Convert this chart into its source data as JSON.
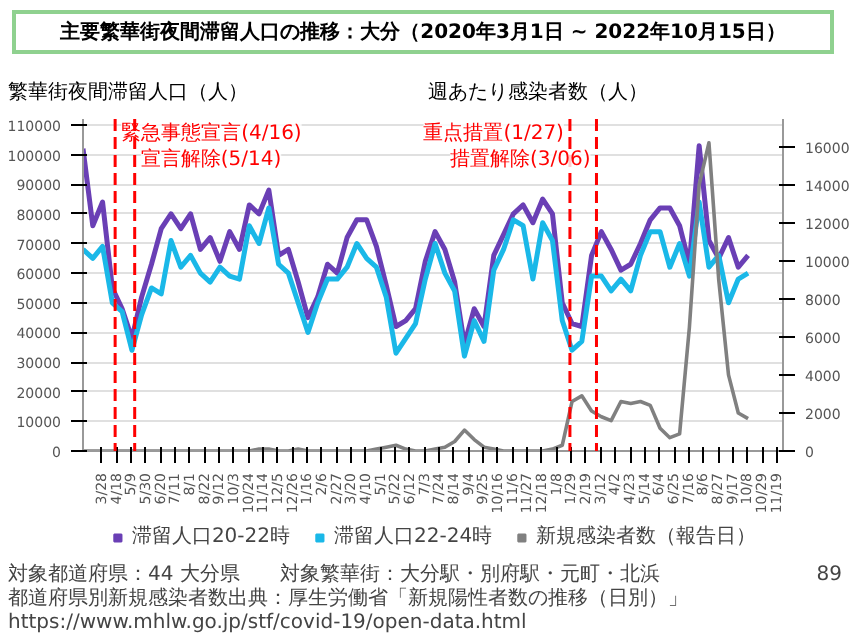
{
  "chart_data": {
    "type": "line",
    "title": "主要繁華街夜間滞留人口の推移：大分（2020年3月1日 ~ 2022年10月15日）",
    "ylabel": "繁華街夜間滞留人口（人）",
    "y2label": "週あたり感染者数（人）",
    "x": [
      "2020-03-01",
      "2020-03-15",
      "2020-03-29",
      "2020-04-12",
      "2020-04-26",
      "2020-05-10",
      "2020-05-24",
      "2020-06-07",
      "2020-06-21",
      "2020-07-05",
      "2020-07-19",
      "2020-08-02",
      "2020-08-16",
      "2020-08-30",
      "2020-09-13",
      "2020-09-27",
      "2020-10-11",
      "2020-10-25",
      "2020-11-08",
      "2020-11-22",
      "2020-12-06",
      "2020-12-20",
      "2021-01-03",
      "2021-01-17",
      "2021-01-31",
      "2021-02-14",
      "2021-02-28",
      "2021-03-14",
      "2021-03-28",
      "2021-04-11",
      "2021-04-25",
      "2021-05-09",
      "2021-05-23",
      "2021-06-06",
      "2021-06-20",
      "2021-07-04",
      "2021-07-18",
      "2021-08-01",
      "2021-08-15",
      "2021-08-29",
      "2021-09-12",
      "2021-09-26",
      "2021-10-10",
      "2021-10-24",
      "2021-11-07",
      "2021-11-21",
      "2021-12-05",
      "2021-12-19",
      "2022-01-02",
      "2022-01-16",
      "2022-01-30",
      "2022-02-13",
      "2022-02-27",
      "2022-03-13",
      "2022-03-27",
      "2022-04-10",
      "2022-04-24",
      "2022-05-08",
      "2022-05-22",
      "2022-06-05",
      "2022-06-19",
      "2022-07-03",
      "2022-07-17",
      "2022-07-31",
      "2022-08-14",
      "2022-08-28",
      "2022-09-11",
      "2022-09-25",
      "2022-10-09"
    ],
    "series": [
      {
        "name": "滞留人口20-22時",
        "color": "#6a3fb5",
        "values": [
          102000,
          76000,
          84000,
          55000,
          48000,
          38000,
          52000,
          63000,
          75000,
          80000,
          75000,
          80000,
          68000,
          72000,
          64000,
          74000,
          68000,
          83000,
          80000,
          88000,
          66000,
          68000,
          57000,
          45000,
          52000,
          63000,
          60000,
          72000,
          78000,
          78000,
          69000,
          56000,
          42000,
          44000,
          48000,
          64000,
          74000,
          68000,
          57000,
          36000,
          48000,
          42000,
          66000,
          73000,
          80000,
          83000,
          77000,
          85000,
          80000,
          50000,
          43000,
          42000,
          66000,
          74000,
          68000,
          61000,
          63000,
          70000,
          78000,
          82000,
          82000,
          76000,
          63000,
          103000,
          71000,
          65000,
          72000,
          62000,
          66000
        ]
      },
      {
        "name": "滞留人口22-24時",
        "color": "#1ab8e8",
        "values": [
          68000,
          65000,
          69000,
          50000,
          47000,
          34000,
          46000,
          55000,
          53000,
          71000,
          62000,
          66000,
          60000,
          57000,
          62000,
          59000,
          58000,
          76000,
          70000,
          82000,
          63000,
          60000,
          50000,
          40000,
          50000,
          58000,
          58000,
          62000,
          70000,
          65000,
          62000,
          52000,
          33000,
          38000,
          43000,
          58000,
          70000,
          60000,
          54000,
          32000,
          44000,
          37000,
          61000,
          68000,
          78000,
          76000,
          58000,
          77000,
          71000,
          44000,
          34000,
          37000,
          59000,
          59000,
          54000,
          58000,
          54000,
          66000,
          74000,
          74000,
          62000,
          70000,
          59000,
          84000,
          62000,
          66000,
          50000,
          58000,
          60000
        ]
      },
      {
        "name": "新規感染者数（報告日）",
        "color": "#808080",
        "axis": "y2",
        "values": [
          0,
          0,
          0,
          0,
          0,
          0,
          0,
          0,
          0,
          0,
          0,
          0,
          0,
          0,
          0,
          0,
          0,
          0,
          100,
          100,
          0,
          0,
          100,
          0,
          0,
          0,
          0,
          0,
          0,
          0,
          100,
          200,
          300,
          100,
          0,
          0,
          100,
          200,
          500,
          1100,
          600,
          200,
          100,
          0,
          0,
          0,
          0,
          0,
          100,
          300,
          2600,
          2900,
          2100,
          1800,
          1600,
          2600,
          2500,
          2600,
          2400,
          1200,
          700,
          900,
          6500,
          14000,
          16200,
          9000,
          4000,
          2000,
          1700
        ]
      }
    ],
    "xlim": [
      "2020-03-01",
      "2022-11-28"
    ],
    "xticks": [
      {
        "value": "2020-03-28",
        "label": "3/28"
      },
      {
        "value": "2020-04-18",
        "label": "4/18"
      },
      {
        "value": "2020-05-09",
        "label": "5/9"
      },
      {
        "value": "2020-05-30",
        "label": "5/30"
      },
      {
        "value": "2020-06-20",
        "label": "6/20"
      },
      {
        "value": "2020-07-11",
        "label": "7/11"
      },
      {
        "value": "2020-08-01",
        "label": "8/1"
      },
      {
        "value": "2020-08-22",
        "label": "8/22"
      },
      {
        "value": "2020-09-12",
        "label": "9/12"
      },
      {
        "value": "2020-10-03",
        "label": "10/3"
      },
      {
        "value": "2020-10-24",
        "label": "10/24"
      },
      {
        "value": "2020-11-14",
        "label": "11/14"
      },
      {
        "value": "2020-12-05",
        "label": "12/5"
      },
      {
        "value": "2020-12-26",
        "label": "12/26"
      },
      {
        "value": "2021-01-16",
        "label": "1/16"
      },
      {
        "value": "2021-02-06",
        "label": "2/6"
      },
      {
        "value": "2021-02-27",
        "label": "2/27"
      },
      {
        "value": "2021-03-20",
        "label": "3/20"
      },
      {
        "value": "2021-04-10",
        "label": "4/10"
      },
      {
        "value": "2021-05-01",
        "label": "5/1"
      },
      {
        "value": "2021-05-22",
        "label": "5/22"
      },
      {
        "value": "2021-06-12",
        "label": "6/12"
      },
      {
        "value": "2021-07-03",
        "label": "7/3"
      },
      {
        "value": "2021-07-24",
        "label": "7/24"
      },
      {
        "value": "2021-08-14",
        "label": "8/14"
      },
      {
        "value": "2021-09-04",
        "label": "9/4"
      },
      {
        "value": "2021-09-25",
        "label": "9/25"
      },
      {
        "value": "2021-10-16",
        "label": "10/16"
      },
      {
        "value": "2021-11-06",
        "label": "11/6"
      },
      {
        "value": "2021-11-27",
        "label": "11/27"
      },
      {
        "value": "2021-12-18",
        "label": "12/18"
      },
      {
        "value": "2022-01-08",
        "label": "1/8"
      },
      {
        "value": "2022-01-29",
        "label": "1/29"
      },
      {
        "value": "2022-02-19",
        "label": "2/19"
      },
      {
        "value": "2022-03-12",
        "label": "3/12"
      },
      {
        "value": "2022-04-02",
        "label": "4/2"
      },
      {
        "value": "2022-04-23",
        "label": "4/23"
      },
      {
        "value": "2022-05-14",
        "label": "5/14"
      },
      {
        "value": "2022-06-04",
        "label": "6/4"
      },
      {
        "value": "2022-06-25",
        "label": "6/25"
      },
      {
        "value": "2022-07-16",
        "label": "7/16"
      },
      {
        "value": "2022-08-06",
        "label": "8/6"
      },
      {
        "value": "2022-08-27",
        "label": "8/27"
      },
      {
        "value": "2022-09-17",
        "label": "9/17"
      },
      {
        "value": "2022-10-08",
        "label": "10/8"
      },
      {
        "value": "2022-10-29",
        "label": "10/29"
      },
      {
        "value": "2022-11-19",
        "label": "11/19"
      }
    ],
    "ylim": [
      0,
      112000
    ],
    "yticks": [
      0,
      10000,
      20000,
      30000,
      40000,
      50000,
      60000,
      70000,
      80000,
      90000,
      100000,
      110000
    ],
    "y2lim": [
      0,
      17450
    ],
    "y2ticks": [
      0,
      2000,
      4000,
      6000,
      8000,
      10000,
      12000,
      14000,
      16000
    ],
    "ref_lines": [
      {
        "axis": "x",
        "value": "2020-04-16",
        "label": "緊急事態宣言(4/16)",
        "color": "#ff0000",
        "line_style": "dashed"
      },
      {
        "axis": "x",
        "value": "2020-05-14",
        "label": "宣言解除(5/14)",
        "color": "#ff0000",
        "line_style": "dashed"
      },
      {
        "axis": "x",
        "value": "2022-01-27",
        "label": "重点措置(1/27)",
        "color": "#ff0000",
        "line_style": "dashed"
      },
      {
        "axis": "x",
        "value": "2022-03-06",
        "label": "措置解除(3/06)",
        "color": "#ff0000",
        "line_style": "dashed"
      }
    ],
    "grid": "y",
    "legend": "bottom",
    "marker": "none",
    "line_style": "solid",
    "annotations": [
      "対象都道府県：44 大分県　　対象繁華街：大分駅・別府駅・元町・北浜",
      "都道府県別新規感染者数出典：厚生労働省「新規陽性者数の推移（日別）」 https://www.mhlw.go.jp/stf/covid-19/open-data.html",
      "89"
    ]
  }
}
